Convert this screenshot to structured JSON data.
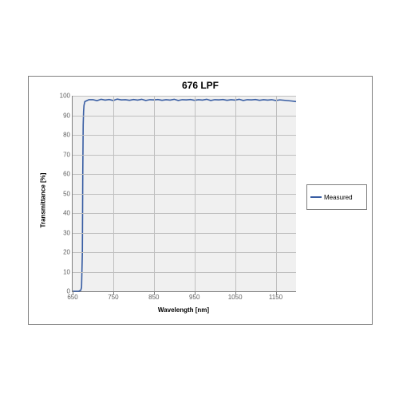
{
  "chart": {
    "type": "line",
    "title": "676 LPF",
    "title_fontsize": 12,
    "xlabel": "Wavelength [nm]",
    "ylabel": "Transmittance [%]",
    "label_fontsize": 8,
    "tick_fontsize": 8,
    "xlim": [
      650,
      1200
    ],
    "ylim": [
      0,
      100
    ],
    "ytick_step": 10,
    "xticks": [
      650,
      750,
      850,
      950,
      1050,
      1150
    ],
    "background_color": "#ffffff",
    "plot_bg_color": "#f0f0f0",
    "grid_color": "#bfbfbf",
    "border_color": "#7f7f7f",
    "series": [
      {
        "name": "Measured",
        "color": "#385da3",
        "line_width": 1.6,
        "data": [
          [
            650,
            0
          ],
          [
            655,
            0
          ],
          [
            660,
            0
          ],
          [
            665,
            0
          ],
          [
            670,
            0.5
          ],
          [
            672,
            2
          ],
          [
            674,
            20
          ],
          [
            675,
            60
          ],
          [
            676,
            85
          ],
          [
            677,
            92
          ],
          [
            678,
            95
          ],
          [
            680,
            97
          ],
          [
            685,
            97.5
          ],
          [
            690,
            98
          ],
          [
            700,
            98
          ],
          [
            710,
            97.5
          ],
          [
            720,
            98.2
          ],
          [
            730,
            97.8
          ],
          [
            740,
            98.1
          ],
          [
            750,
            97.6
          ],
          [
            760,
            98.3
          ],
          [
            770,
            97.9
          ],
          [
            780,
            98
          ],
          [
            790,
            97.7
          ],
          [
            800,
            98.1
          ],
          [
            810,
            97.8
          ],
          [
            820,
            98.2
          ],
          [
            830,
            97.6
          ],
          [
            840,
            98
          ],
          [
            850,
            97.9
          ],
          [
            860,
            98.1
          ],
          [
            870,
            97.7
          ],
          [
            880,
            98
          ],
          [
            890,
            97.8
          ],
          [
            900,
            98.2
          ],
          [
            910,
            97.6
          ],
          [
            920,
            98
          ],
          [
            930,
            97.9
          ],
          [
            940,
            98.1
          ],
          [
            950,
            97.7
          ],
          [
            960,
            98
          ],
          [
            970,
            97.8
          ],
          [
            980,
            98.2
          ],
          [
            990,
            97.6
          ],
          [
            1000,
            98
          ],
          [
            1010,
            97.9
          ],
          [
            1020,
            98.1
          ],
          [
            1030,
            97.7
          ],
          [
            1040,
            98
          ],
          [
            1050,
            97.8
          ],
          [
            1060,
            98.2
          ],
          [
            1070,
            97.6
          ],
          [
            1080,
            98
          ],
          [
            1090,
            97.9
          ],
          [
            1100,
            98.1
          ],
          [
            1110,
            97.7
          ],
          [
            1120,
            98
          ],
          [
            1130,
            97.8
          ],
          [
            1140,
            98
          ],
          [
            1150,
            97.6
          ],
          [
            1160,
            97.9
          ],
          [
            1170,
            97.7
          ],
          [
            1180,
            97.5
          ],
          [
            1190,
            97.3
          ],
          [
            1200,
            97
          ]
        ]
      }
    ],
    "legend": {
      "position": "right",
      "border_color": "#7f7f7f"
    }
  }
}
